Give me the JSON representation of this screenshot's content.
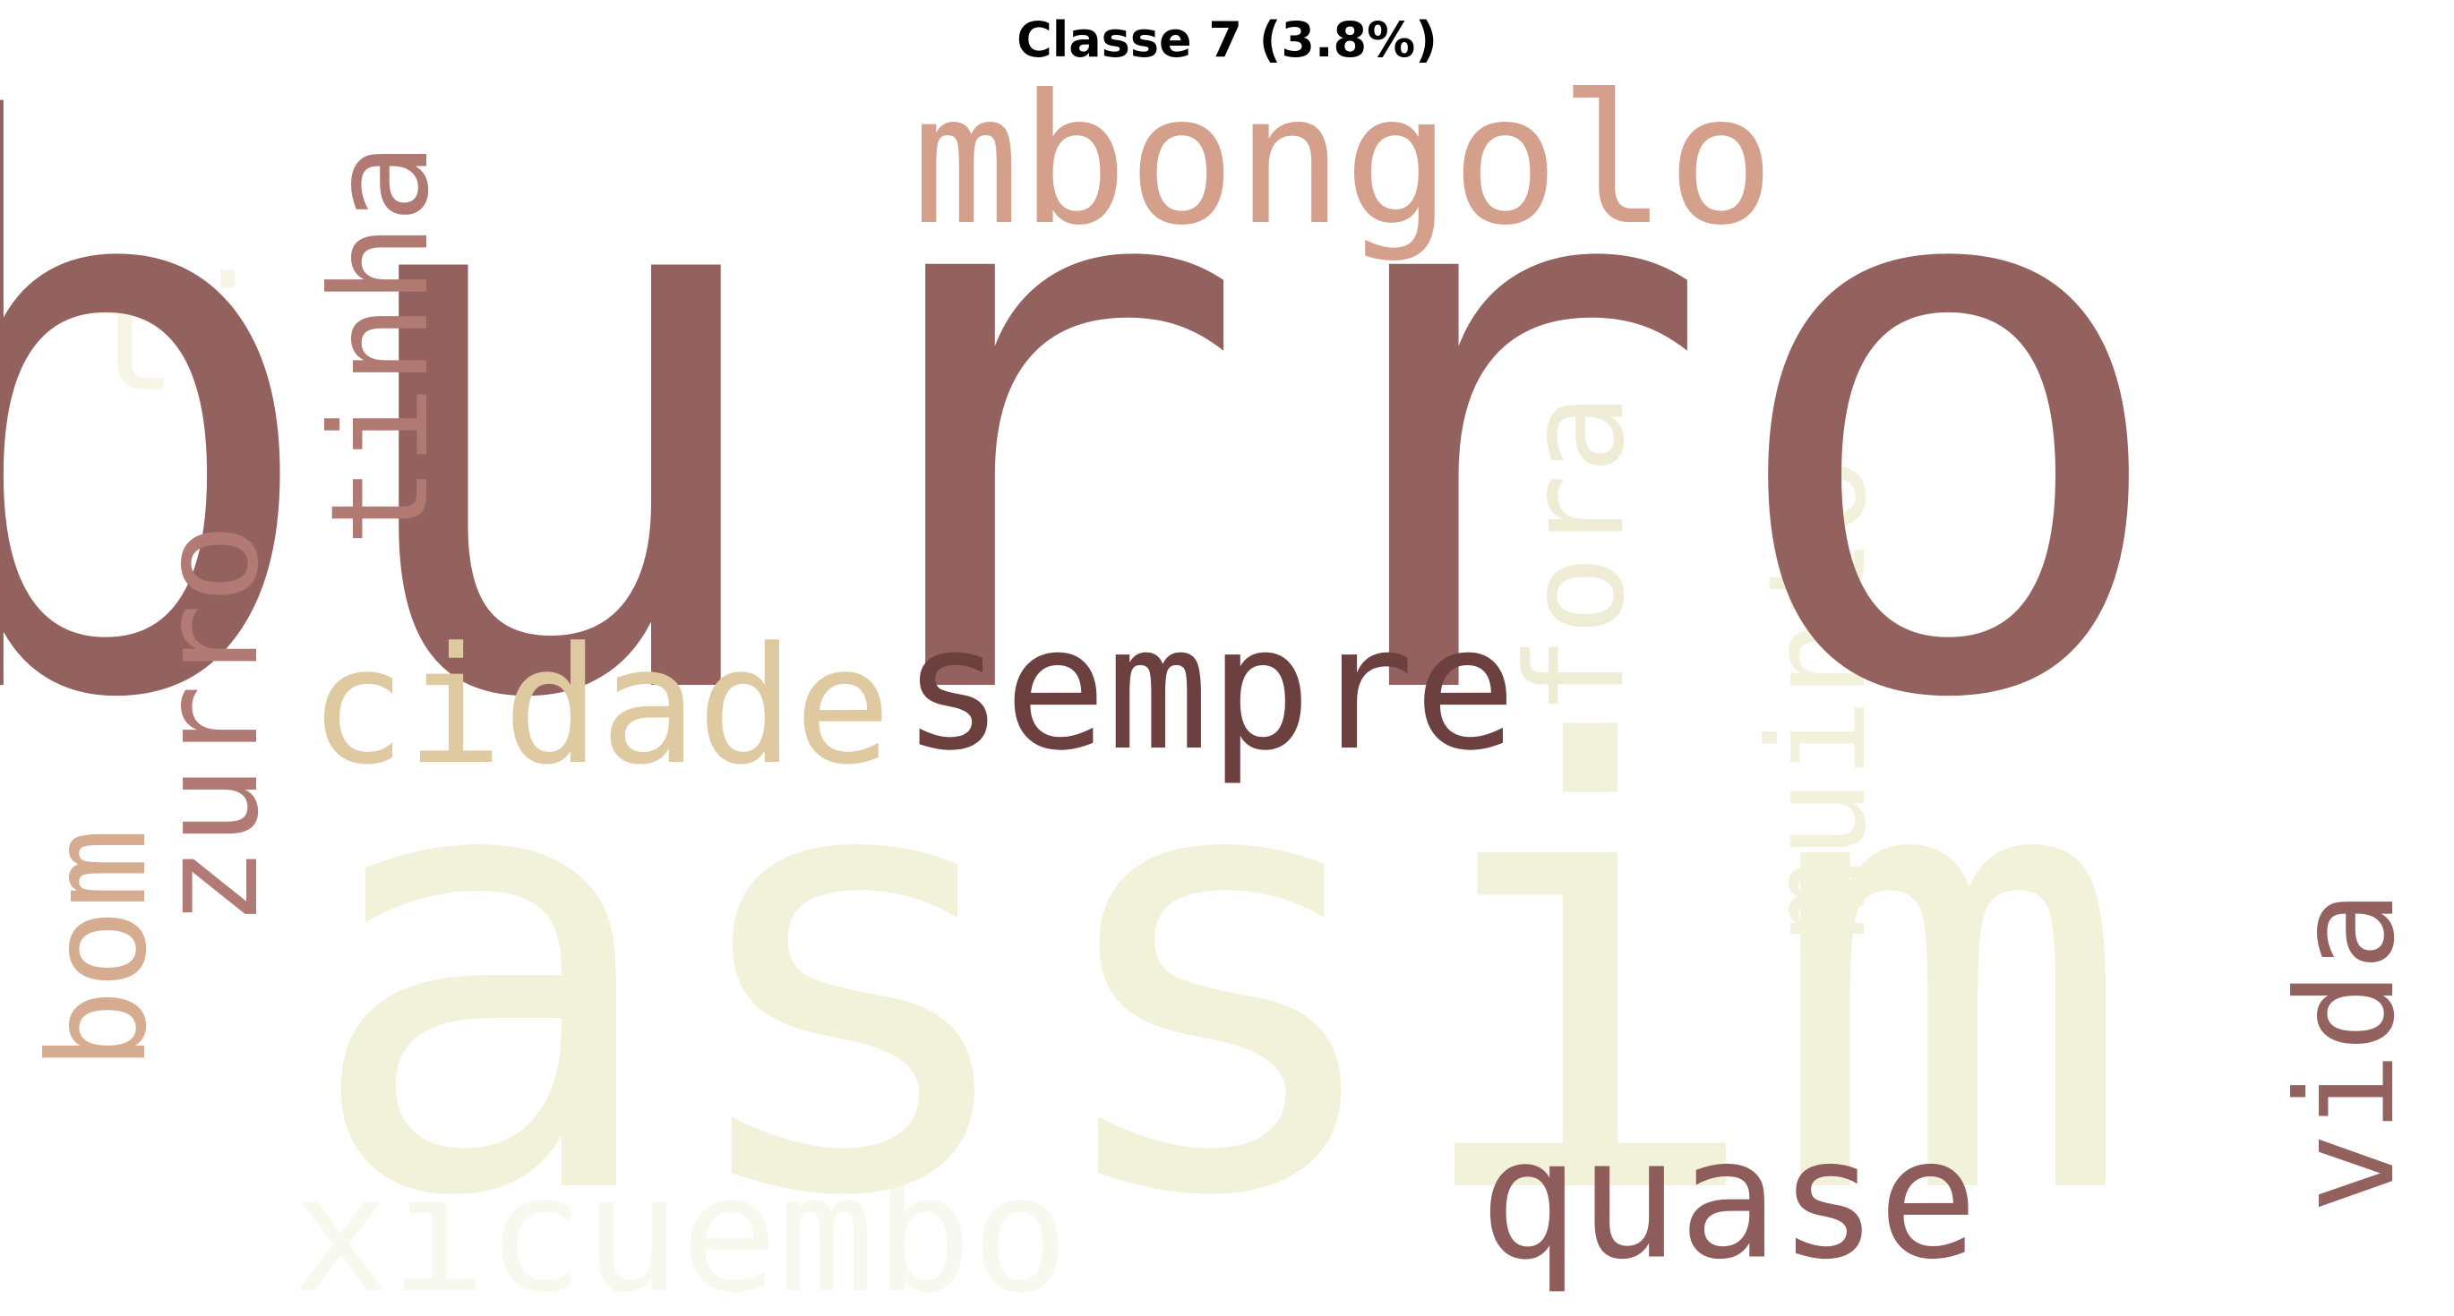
{
  "title": "Classe 7 (3.8%)",
  "words": [
    {
      "id": "ti",
      "text": "ti",
      "color": "#f7f6e6"
    },
    {
      "id": "xicuembo",
      "text": "xicuembo",
      "color": "#f8f8ee"
    },
    {
      "id": "assim",
      "text": "assim",
      "color": "#f2f1da"
    },
    {
      "id": "muinto",
      "text": "muinto",
      "color": "#f2f1dc"
    },
    {
      "id": "fora",
      "text": "fora",
      "color": "#efecd6"
    },
    {
      "id": "burro",
      "text": "burro",
      "color": "#94625e"
    },
    {
      "id": "mbongolo",
      "text": "mbongolo",
      "color": "#d4a08c"
    },
    {
      "id": "tinha",
      "text": "tinha",
      "color": "#b07a72"
    },
    {
      "id": "zurro",
      "text": "zurro",
      "color": "#b27a75"
    },
    {
      "id": "bom",
      "text": "bom",
      "color": "#d6ac90"
    },
    {
      "id": "cidade",
      "text": "cidade",
      "color": "#dfc9a0"
    },
    {
      "id": "sempre",
      "text": "sempre",
      "color": "#6b403f"
    },
    {
      "id": "quase",
      "text": "quase",
      "color": "#8e5c5a"
    },
    {
      "id": "vida",
      "text": "vida",
      "color": "#94625e"
    }
  ]
}
